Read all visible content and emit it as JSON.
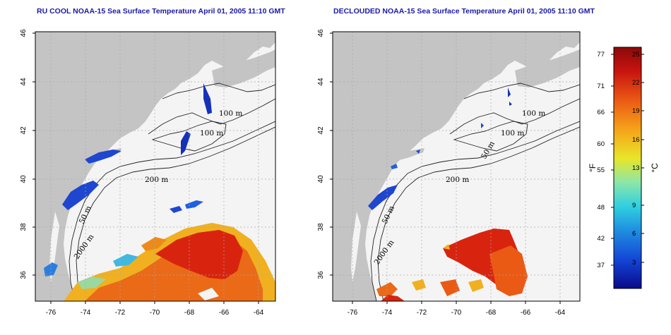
{
  "panels": [
    {
      "title": "RU COOL NOAA-15 Sea Surface Temperature April 01, 2005 11:10 GMT",
      "contour_labels": [
        "100 m",
        "100 m",
        "200 m",
        "50 m",
        "2000 m"
      ]
    },
    {
      "title": "DECLOUDED NOAA-15 Sea Surface Temperature April 01, 2005 11:10 GMT",
      "contour_labels": [
        "100 m",
        "100 m",
        "50 m",
        "200 m",
        "50 m",
        "2000 m"
      ]
    }
  ],
  "axes": {
    "x_ticks": [
      "-76",
      "-74",
      "-72",
      "-70",
      "-68",
      "-66",
      "-64"
    ],
    "y_ticks": [
      "46",
      "44",
      "42",
      "40",
      "38",
      "36"
    ]
  },
  "colorbar": {
    "fahrenheit_ticks": [
      "77",
      "71",
      "66",
      "60",
      "55",
      "48",
      "42",
      "37"
    ],
    "celsius_ticks": [
      "25",
      "22",
      "19",
      "16",
      "13",
      "9",
      "6",
      "3"
    ],
    "fahrenheit_unit": "°F",
    "celsius_unit": "°C",
    "colors": [
      "#0a0a8c",
      "#1446d6",
      "#1f8ee0",
      "#2fd0e0",
      "#8de6a8",
      "#e8e628",
      "#f6a21a",
      "#ea5a14",
      "#c8140f",
      "#8a0a0a"
    ]
  },
  "colors": {
    "land": "#c4c4c4",
    "ocean": "#f4f4f4",
    "title": "#1a1aa6",
    "grid": "#a8a8a8"
  }
}
